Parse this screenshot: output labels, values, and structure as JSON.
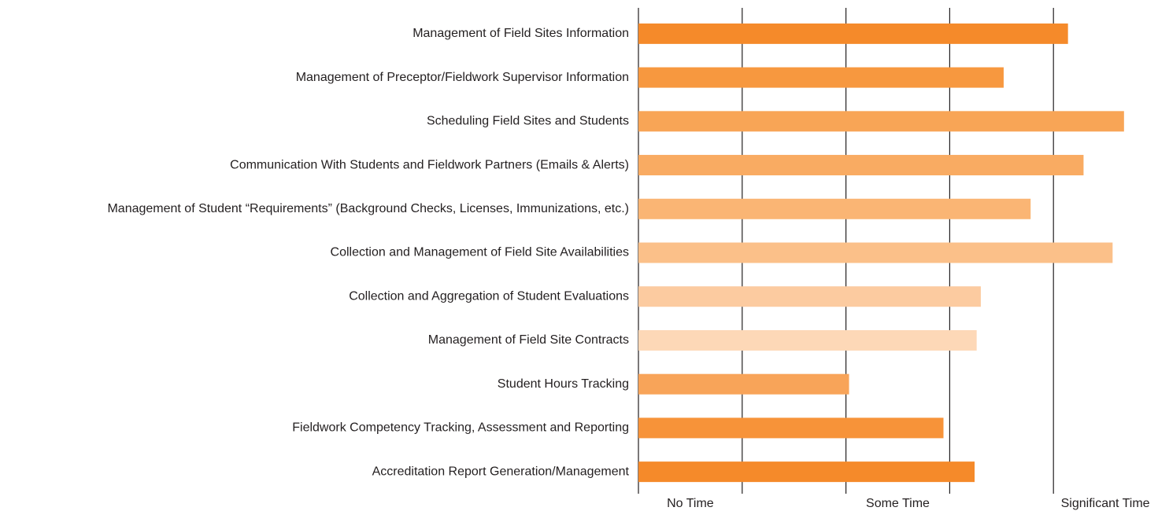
{
  "chart_data": {
    "type": "bar",
    "orientation": "horizontal",
    "categories": [
      "Management of Field Sites Information",
      "Management of Preceptor/Fieldwork Supervisor Information",
      "Scheduling Field Sites and Students",
      "Communication With Students and Fieldwork Partners (Emails & Alerts)",
      "Management of Student “Requirements” (Background Checks, Licenses, Immunizations, etc.)",
      "Collection and Management of Field Site Availabilities",
      "Collection and Aggregation of Student Evaluations",
      "Management of Field Site Contracts",
      "Student Hours Tracking",
      "Fieldwork Competency Tracking, Assessment and Reporting",
      "Accreditation Report Generation/Management"
    ],
    "values": [
      4.14,
      3.52,
      4.68,
      4.29,
      3.78,
      4.57,
      3.3,
      3.26,
      2.03,
      2.94,
      3.24
    ],
    "colors": [
      "#f58a2a",
      "#f7983f",
      "#f8a556",
      "#f9ab62",
      "#fab574",
      "#fbc089",
      "#fccba0",
      "#fdd8b7",
      "#f8a459",
      "#f79339",
      "#f58a2a"
    ],
    "xlim": [
      0,
      5
    ],
    "xticks": [
      {
        "value": 0.5,
        "label": "No Time"
      },
      {
        "value": 2.5,
        "label": "Some Time"
      },
      {
        "value": 4.5,
        "label": "Significant Time"
      }
    ],
    "grid_lines": [
      1,
      2,
      3,
      4
    ],
    "grid": true
  }
}
